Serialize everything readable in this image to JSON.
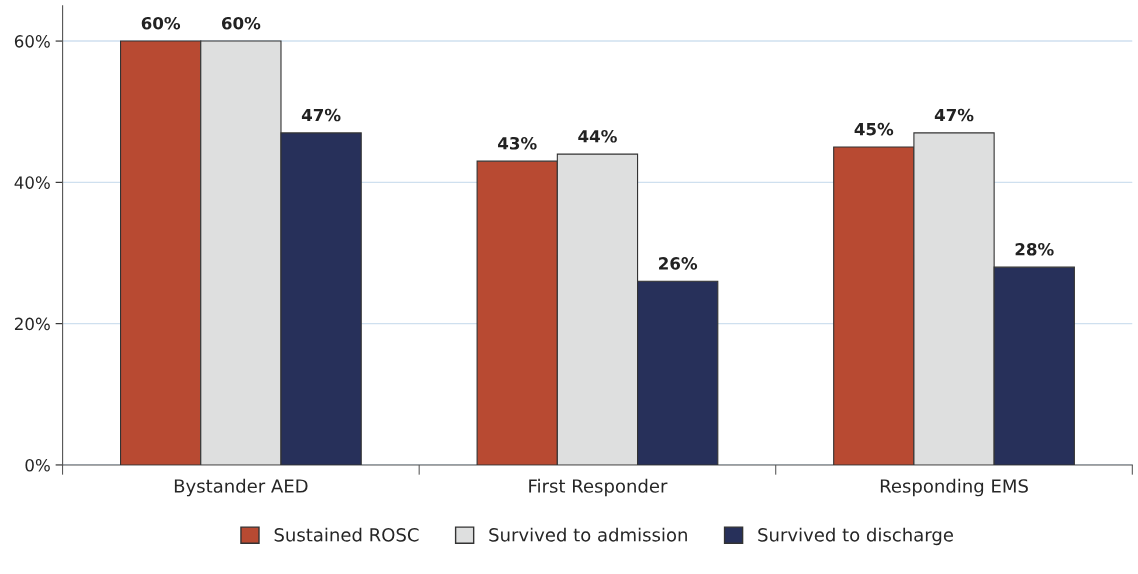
{
  "chart_data": {
    "type": "bar",
    "categories": [
      "Bystander AED",
      "First Responder",
      "Responding EMS"
    ],
    "series": [
      {
        "name": "Sustained ROSC",
        "color": "#b84a32",
        "values": [
          60,
          43,
          45
        ],
        "value_labels": [
          "60%",
          "43%",
          "45%"
        ]
      },
      {
        "name": "Survived to admission",
        "color": "#dedfdf",
        "values": [
          60,
          44,
          47
        ],
        "value_labels": [
          "60%",
          "44%",
          "47%"
        ]
      },
      {
        "name": "Survived to discharge",
        "color": "#27305a",
        "values": [
          47,
          26,
          28
        ],
        "value_labels": [
          "47%",
          "26%",
          "28%"
        ]
      }
    ],
    "ylim": [
      0,
      65
    ],
    "yticks": [
      {
        "value": 0,
        "label": "0%"
      },
      {
        "value": 20,
        "label": "20%"
      },
      {
        "value": 40,
        "label": "40%"
      },
      {
        "value": 60,
        "label": "60%"
      }
    ],
    "grid": "y",
    "legend": "bottom"
  }
}
